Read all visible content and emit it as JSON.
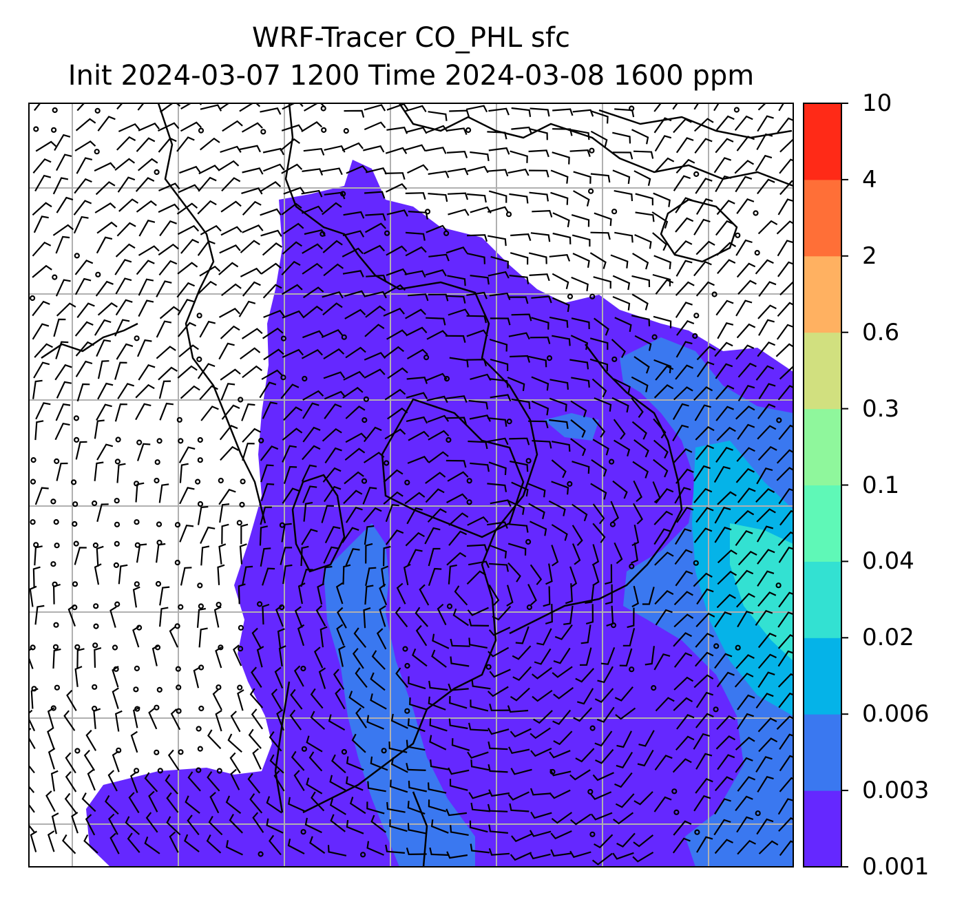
{
  "title": {
    "line1": "WRF-Tracer CO_PHL sfc",
    "line2": "Init 2024-03-07 1200 Time 2024-03-08 1600 ppm"
  },
  "colorbar": {
    "levels": [
      "0.001",
      "0.003",
      "0.006",
      "0.02",
      "0.04",
      "0.1",
      "0.3",
      "0.6",
      "2",
      "4",
      "10"
    ],
    "colors": [
      "#6528ff",
      "#3a78f0",
      "#05b3e8",
      "#33e1d2",
      "#5ff8b7",
      "#8ff79c",
      "#d1e07f",
      "#ffb161",
      "#ff6f37",
      "#ff2a17"
    ]
  },
  "map": {
    "grid_color": "#b0b0b0",
    "frame_color": "#000000",
    "contour_levels_shown": [
      "0.001",
      "0.003",
      "0.006",
      "0.02"
    ],
    "wind_barbs": "black"
  }
}
